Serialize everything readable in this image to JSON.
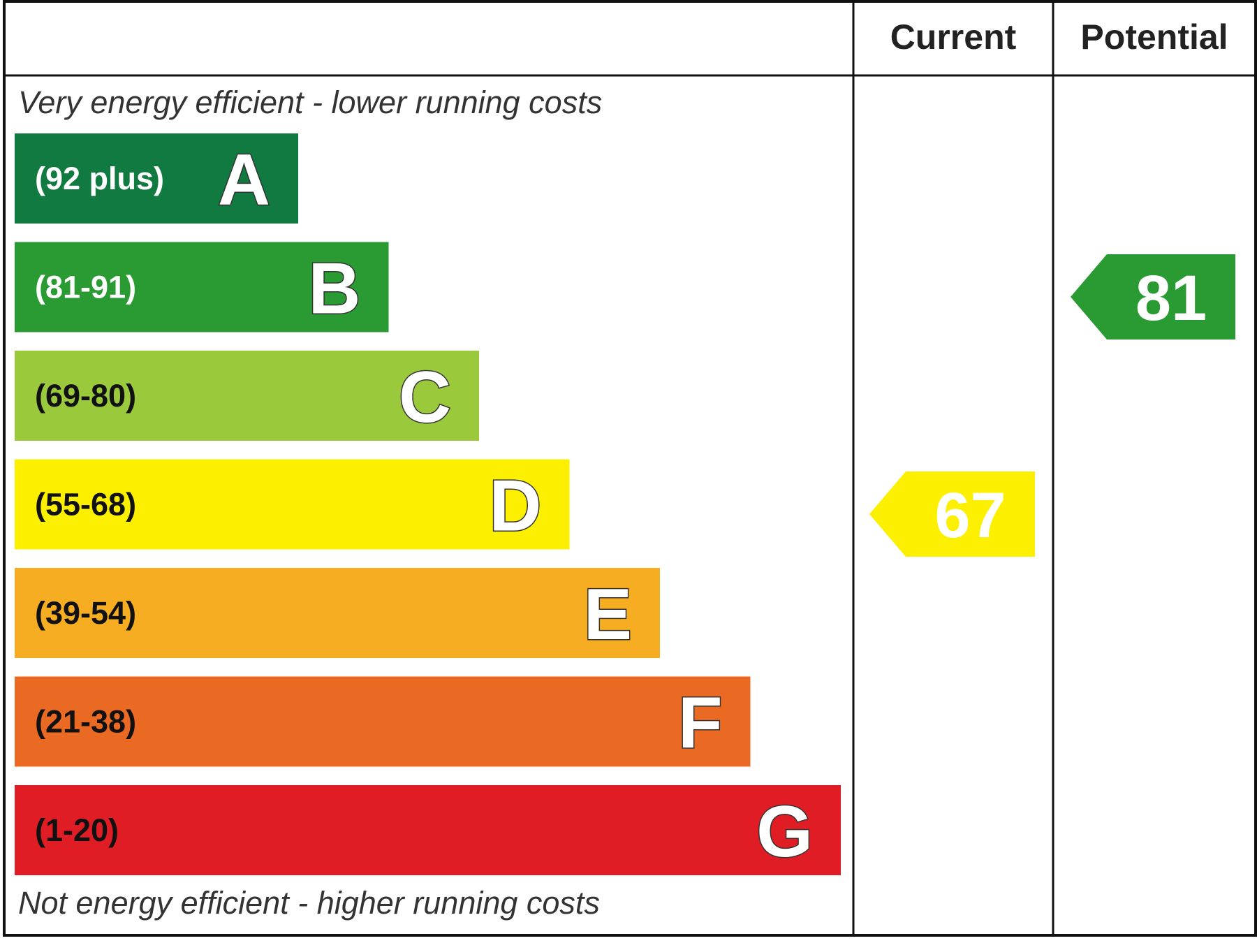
{
  "chart_data": {
    "type": "bar",
    "headers": {
      "current": "Current",
      "potential": "Potential"
    },
    "top_note": "Very energy efficient - lower running costs",
    "bottom_note": "Not energy efficient - higher running costs",
    "bands": [
      {
        "letter": "A",
        "range": "(92 plus)",
        "color": "#117a40",
        "range_color": "#ffffff"
      },
      {
        "letter": "B",
        "range": "(81-91)",
        "color": "#2a9a32",
        "range_color": "#ffffff"
      },
      {
        "letter": "C",
        "range": "(69-80)",
        "color": "#9bc93c",
        "range_color": "#111111"
      },
      {
        "letter": "D",
        "range": "(55-68)",
        "color": "#fdef00",
        "range_color": "#111111"
      },
      {
        "letter": "E",
        "range": "(39-54)",
        "color": "#f6ad21",
        "range_color": "#111111"
      },
      {
        "letter": "F",
        "range": "(21-38)",
        "color": "#ea6a23",
        "range_color": "#111111"
      },
      {
        "letter": "G",
        "range": "(1-20)",
        "color": "#e01d24",
        "range_color": "#111111"
      }
    ],
    "ratings": {
      "current": {
        "value": 67,
        "band": "D",
        "color": "#fdef00"
      },
      "potential": {
        "value": 81,
        "band": "B",
        "color": "#2a9a32"
      }
    }
  }
}
